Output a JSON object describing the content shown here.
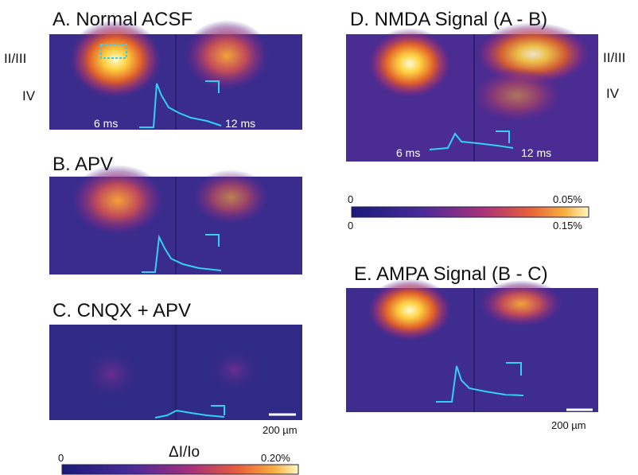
{
  "panels": [
    {
      "title": "A. Normal ACSF",
      "time_labels": [
        "6 ms",
        "12 ms"
      ],
      "layer_labels": [
        "II/III",
        "IV"
      ]
    },
    {
      "title": "B. APV"
    },
    {
      "title": "C. CNQX + APV",
      "scale_bar": "200 µm"
    },
    {
      "title": "D. NMDA Signal (A - B)",
      "time_labels": [
        "6 ms",
        "12 ms"
      ],
      "layer_labels": [
        "II/III",
        "IV"
      ]
    },
    {
      "title": "E. AMPA Signal (B - C)",
      "scale_bar": "200 µm"
    }
  ],
  "colorbars": [
    {
      "label": "ΔI/Io",
      "min": "0",
      "max": "0.20%"
    },
    {
      "min_top": "0",
      "max_top": "0.05%",
      "min_bottom": "0",
      "max_bottom": "0.15%"
    }
  ]
}
